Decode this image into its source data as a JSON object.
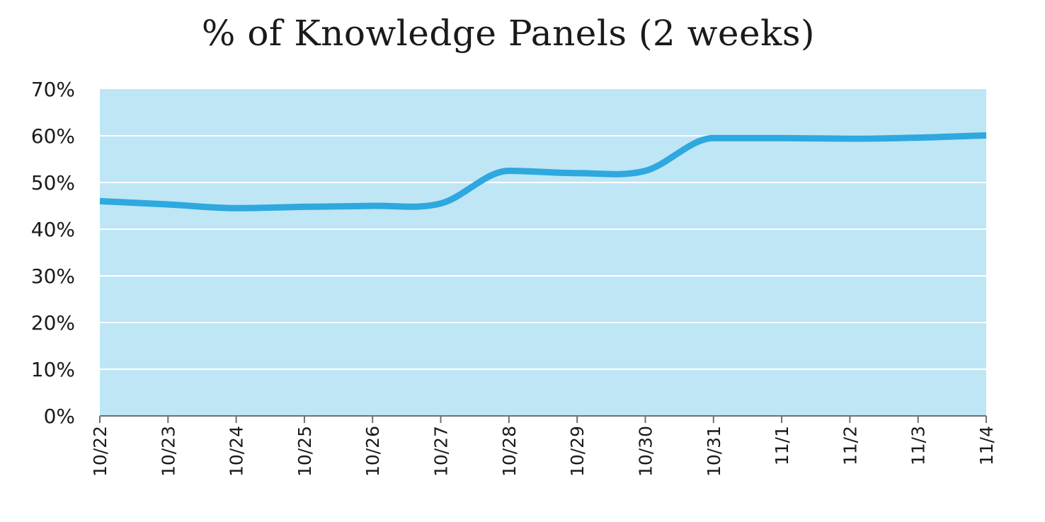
{
  "chart_data": {
    "type": "line",
    "title": "% of Knowledge Panels (2 weeks)",
    "xlabel": "",
    "ylabel": "",
    "categories": [
      "10/22",
      "10/23",
      "10/24",
      "10/25",
      "10/26",
      "10/27",
      "10/28",
      "10/29",
      "10/30",
      "10/31",
      "11/1",
      "11/2",
      "11/3",
      "11/4"
    ],
    "y_ticks": [
      "0%",
      "10%",
      "20%",
      "30%",
      "40%",
      "50%",
      "60%",
      "70%"
    ],
    "ylim": [
      0,
      70
    ],
    "grid": true,
    "legend": "none",
    "series": [
      {
        "values": [
          46,
          45.3,
          44.5,
          44.8,
          45,
          45.5,
          52.5,
          52,
          52.5,
          59.5,
          59.5,
          59.4,
          59.6,
          60.1
        ]
      }
    ],
    "colors": {
      "plot_background": "#bee6f5",
      "gridline": "#ffffff",
      "line": "#2ea8df",
      "axis": "#6f6f6f"
    }
  }
}
